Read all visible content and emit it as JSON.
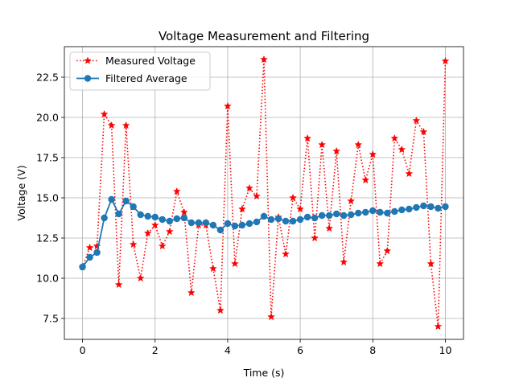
{
  "chart_data": {
    "type": "line",
    "title": "Voltage Measurement and Filtering",
    "xlabel": "Time (s)",
    "ylabel": "Voltage (V)",
    "xlim": [
      -0.5,
      10.5
    ],
    "ylim": [
      6.2,
      24.4
    ],
    "xticks": [
      0,
      2,
      4,
      6,
      8,
      10
    ],
    "xtick_labels": [
      "0",
      "2",
      "4",
      "6",
      "8",
      "10"
    ],
    "yticks": [
      7.5,
      10.0,
      12.5,
      15.0,
      17.5,
      20.0,
      22.5
    ],
    "ytick_labels": [
      "7.5",
      "10.0",
      "12.5",
      "15.0",
      "17.5",
      "20.0",
      "22.5"
    ],
    "grid": true,
    "legend_position": "upper-left",
    "x": [
      0,
      0.2,
      0.4,
      0.6,
      0.8,
      1.0,
      1.2,
      1.4,
      1.6,
      1.8,
      2.0,
      2.2,
      2.4,
      2.6,
      2.8,
      3.0,
      3.2,
      3.4,
      3.6,
      3.8,
      4.0,
      4.2,
      4.4,
      4.6,
      4.8,
      5.0,
      5.2,
      5.4,
      5.6,
      5.8,
      6.0,
      6.2,
      6.4,
      6.6,
      6.8,
      7.0,
      7.2,
      7.4,
      7.6,
      7.8,
      8.0,
      8.2,
      8.4,
      8.6,
      8.8,
      9.0,
      9.2,
      9.4,
      9.6,
      9.8,
      10.0
    ],
    "series": [
      {
        "name": "Measured Voltage",
        "color": "#ff0000",
        "linestyle": "dotted",
        "marker": "star",
        "values": [
          10.7,
          11.9,
          12.0,
          20.2,
          19.5,
          9.6,
          19.5,
          12.1,
          10.0,
          12.8,
          13.3,
          12.0,
          12.9,
          15.4,
          14.1,
          9.1,
          13.3,
          13.3,
          10.6,
          8.0,
          20.7,
          10.9,
          14.3,
          15.6,
          15.1,
          23.6,
          7.6,
          13.8,
          11.5,
          15.0,
          14.3,
          18.7,
          12.5,
          18.3,
          13.1,
          17.9,
          11.0,
          14.8,
          18.3,
          16.1,
          17.7,
          10.9,
          11.7,
          18.7,
          18.0,
          16.5,
          19.8,
          19.1,
          10.9,
          7.0,
          23.5
        ]
      },
      {
        "name": "Filtered Average",
        "color": "#1f77b4",
        "linestyle": "solid",
        "marker": "circle",
        "values": [
          10.7,
          11.3,
          11.6,
          13.75,
          14.9,
          14.0,
          14.8,
          14.45,
          13.95,
          13.85,
          13.8,
          13.65,
          13.55,
          13.7,
          13.75,
          13.45,
          13.45,
          13.45,
          13.3,
          13.0,
          13.4,
          13.25,
          13.3,
          13.4,
          13.5,
          13.85,
          13.65,
          13.7,
          13.55,
          13.55,
          13.65,
          13.8,
          13.75,
          13.9,
          13.9,
          14.0,
          13.9,
          13.95,
          14.05,
          14.1,
          14.2,
          14.1,
          14.05,
          14.15,
          14.25,
          14.3,
          14.4,
          14.5,
          14.45,
          14.35,
          14.45
        ]
      }
    ]
  }
}
